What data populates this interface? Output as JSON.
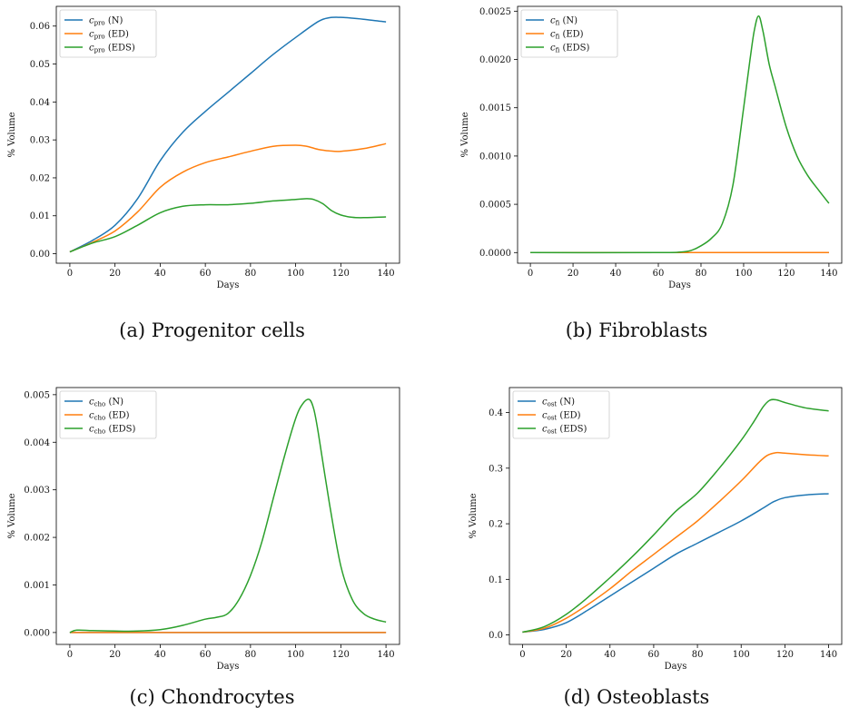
{
  "chart_data": [
    {
      "type": "line",
      "caption": "(a) Progenitor cells",
      "xlabel": "Days",
      "ylabel": "% Volume",
      "xlim": [
        -6,
        146
      ],
      "ylim": [
        -0.0025,
        0.0652
      ],
      "xticks": [
        0,
        20,
        40,
        60,
        80,
        100,
        120,
        140
      ],
      "xtick_labels": [
        "0",
        "20",
        "40",
        "60",
        "80",
        "100",
        "120",
        "140"
      ],
      "yticks": [
        0.0,
        0.01,
        0.02,
        0.03,
        0.04,
        0.05,
        0.06
      ],
      "ytick_labels": [
        "0.00",
        "0.01",
        "0.02",
        "0.03",
        "0.04",
        "0.05",
        "0.06"
      ],
      "legend": "top-left",
      "grid": false,
      "series": [
        {
          "name": "(N)",
          "var": "c",
          "sub": "pro",
          "color": "#1f77b4",
          "x": [
            0,
            10,
            20,
            30,
            40,
            50,
            60,
            70,
            80,
            90,
            100,
            110,
            115,
            120,
            125,
            130,
            140
          ],
          "y": [
            0.0005,
            0.0035,
            0.0075,
            0.0145,
            0.0245,
            0.032,
            0.0375,
            0.0425,
            0.0475,
            0.0525,
            0.057,
            0.0612,
            0.0622,
            0.0623,
            0.0621,
            0.0618,
            0.0611
          ]
        },
        {
          "name": "(ED)",
          "var": "c",
          "sub": "pro",
          "color": "#ff7f0e",
          "x": [
            0,
            10,
            20,
            30,
            40,
            50,
            60,
            70,
            80,
            90,
            100,
            105,
            110,
            115,
            120,
            130,
            140
          ],
          "y": [
            0.0005,
            0.003,
            0.006,
            0.011,
            0.0175,
            0.0215,
            0.024,
            0.0255,
            0.027,
            0.0283,
            0.0286,
            0.0283,
            0.0275,
            0.0271,
            0.027,
            0.0277,
            0.029
          ]
        },
        {
          "name": "(EDS)",
          "var": "c",
          "sub": "pro",
          "color": "#2ca02c",
          "x": [
            0,
            10,
            20,
            30,
            40,
            50,
            60,
            70,
            80,
            90,
            100,
            105,
            108,
            112,
            116,
            120,
            125,
            130,
            140
          ],
          "y": [
            0.0005,
            0.0028,
            0.0045,
            0.0075,
            0.0108,
            0.0125,
            0.0129,
            0.0129,
            0.0133,
            0.0139,
            0.0143,
            0.0145,
            0.0143,
            0.0132,
            0.0113,
            0.0102,
            0.0096,
            0.0095,
            0.0097
          ]
        }
      ]
    },
    {
      "type": "line",
      "caption": "(b) Fibroblasts",
      "xlabel": "Days",
      "ylabel": "% Volume",
      "xlim": [
        -6,
        146
      ],
      "ylim": [
        -0.00011,
        0.00255
      ],
      "xticks": [
        0,
        20,
        40,
        60,
        80,
        100,
        120,
        140
      ],
      "xtick_labels": [
        "0",
        "20",
        "40",
        "60",
        "80",
        "100",
        "120",
        "140"
      ],
      "yticks": [
        0.0,
        0.0005,
        0.001,
        0.0015,
        0.002,
        0.0025
      ],
      "ytick_labels": [
        "0.0000",
        "0.0005",
        "0.0010",
        "0.0015",
        "0.0020",
        "0.0025"
      ],
      "legend": "top-left",
      "grid": false,
      "series": [
        {
          "name": "(N)",
          "var": "c",
          "sub": "fi",
          "color": "#1f77b4",
          "x": [
            0,
            140
          ],
          "y": [
            0,
            0
          ]
        },
        {
          "name": "(ED)",
          "var": "c",
          "sub": "fi",
          "color": "#ff7f0e",
          "x": [
            0,
            140
          ],
          "y": [
            0,
            0
          ]
        },
        {
          "name": "(EDS)",
          "var": "c",
          "sub": "fi",
          "color": "#2ca02c",
          "x": [
            0,
            60,
            70,
            75,
            80,
            85,
            90,
            95,
            100,
            103,
            105,
            107,
            109,
            112,
            115,
            120,
            125,
            130,
            135,
            140
          ],
          "y": [
            0,
            0,
            5e-06,
            2e-05,
            7e-05,
            0.00015,
            0.0003,
            0.0007,
            0.0015,
            0.002,
            0.0023,
            0.00245,
            0.0023,
            0.00195,
            0.0017,
            0.0013,
            0.001,
            0.0008,
            0.00065,
            0.00051
          ]
        }
      ]
    },
    {
      "type": "line",
      "caption": "(c) Chondrocytes",
      "xlabel": "Days",
      "ylabel": "% Volume",
      "xlim": [
        -6,
        146
      ],
      "ylim": [
        -0.00025,
        0.00515
      ],
      "xticks": [
        0,
        20,
        40,
        60,
        80,
        100,
        120,
        140
      ],
      "xtick_labels": [
        "0",
        "20",
        "40",
        "60",
        "80",
        "100",
        "120",
        "140"
      ],
      "yticks": [
        0.0,
        0.001,
        0.002,
        0.003,
        0.004,
        0.005
      ],
      "ytick_labels": [
        "0.000",
        "0.001",
        "0.002",
        "0.003",
        "0.004",
        "0.005"
      ],
      "legend": "top-left",
      "grid": false,
      "series": [
        {
          "name": "(N)",
          "var": "c",
          "sub": "cho",
          "color": "#1f77b4",
          "x": [
            0,
            140
          ],
          "y": [
            0,
            0
          ]
        },
        {
          "name": "(ED)",
          "var": "c",
          "sub": "cho",
          "color": "#ff7f0e",
          "x": [
            0,
            140
          ],
          "y": [
            0,
            0
          ]
        },
        {
          "name": "(EDS)",
          "var": "c",
          "sub": "cho",
          "color": "#2ca02c",
          "x": [
            0,
            3,
            10,
            20,
            30,
            40,
            50,
            60,
            65,
            70,
            75,
            80,
            85,
            90,
            95,
            100,
            103,
            106,
            108,
            110,
            115,
            120,
            125,
            130,
            135,
            140
          ],
          "y": [
            0,
            5e-05,
            4e-05,
            3e-05,
            3e-05,
            6e-05,
            0.00015,
            0.00028,
            0.00032,
            0.0004,
            0.0007,
            0.0012,
            0.0019,
            0.0028,
            0.0037,
            0.0045,
            0.0048,
            0.0049,
            0.0047,
            0.0042,
            0.0027,
            0.0014,
            0.0007,
            0.0004,
            0.00028,
            0.00022
          ]
        }
      ]
    },
    {
      "type": "line",
      "caption": "(d) Osteoblasts",
      "xlabel": "Days",
      "ylabel": "% Volume",
      "xlim": [
        -6,
        146
      ],
      "ylim": [
        -0.017,
        0.445
      ],
      "xticks": [
        0,
        20,
        40,
        60,
        80,
        100,
        120,
        140
      ],
      "xtick_labels": [
        "0",
        "20",
        "40",
        "60",
        "80",
        "100",
        "120",
        "140"
      ],
      "yticks": [
        0.0,
        0.1,
        0.2,
        0.3,
        0.4
      ],
      "ytick_labels": [
        "0.0",
        "0.1",
        "0.2",
        "0.3",
        "0.4"
      ],
      "legend": "top-left",
      "grid": false,
      "series": [
        {
          "name": "(N)",
          "var": "c",
          "sub": "ost",
          "color": "#1f77b4",
          "x": [
            0,
            10,
            20,
            30,
            40,
            50,
            60,
            70,
            80,
            90,
            100,
            110,
            115,
            120,
            130,
            140
          ],
          "y": [
            0.005,
            0.01,
            0.022,
            0.045,
            0.07,
            0.095,
            0.12,
            0.145,
            0.165,
            0.185,
            0.205,
            0.228,
            0.24,
            0.247,
            0.252,
            0.254
          ]
        },
        {
          "name": "(ED)",
          "var": "c",
          "sub": "ost",
          "color": "#ff7f0e",
          "x": [
            0,
            10,
            20,
            30,
            40,
            50,
            60,
            70,
            80,
            90,
            100,
            108,
            112,
            116,
            120,
            130,
            140
          ],
          "y": [
            0.005,
            0.012,
            0.03,
            0.055,
            0.083,
            0.115,
            0.145,
            0.175,
            0.205,
            0.24,
            0.277,
            0.31,
            0.323,
            0.328,
            0.327,
            0.324,
            0.322
          ]
        },
        {
          "name": "(EDS)",
          "var": "c",
          "sub": "ost",
          "color": "#2ca02c",
          "x": [
            0,
            10,
            20,
            30,
            40,
            50,
            60,
            70,
            80,
            90,
            100,
            106,
            110,
            113,
            116,
            120,
            130,
            140
          ],
          "y": [
            0.005,
            0.015,
            0.037,
            0.068,
            0.103,
            0.14,
            0.18,
            0.222,
            0.255,
            0.3,
            0.35,
            0.385,
            0.41,
            0.422,
            0.423,
            0.418,
            0.408,
            0.403
          ]
        }
      ]
    }
  ]
}
